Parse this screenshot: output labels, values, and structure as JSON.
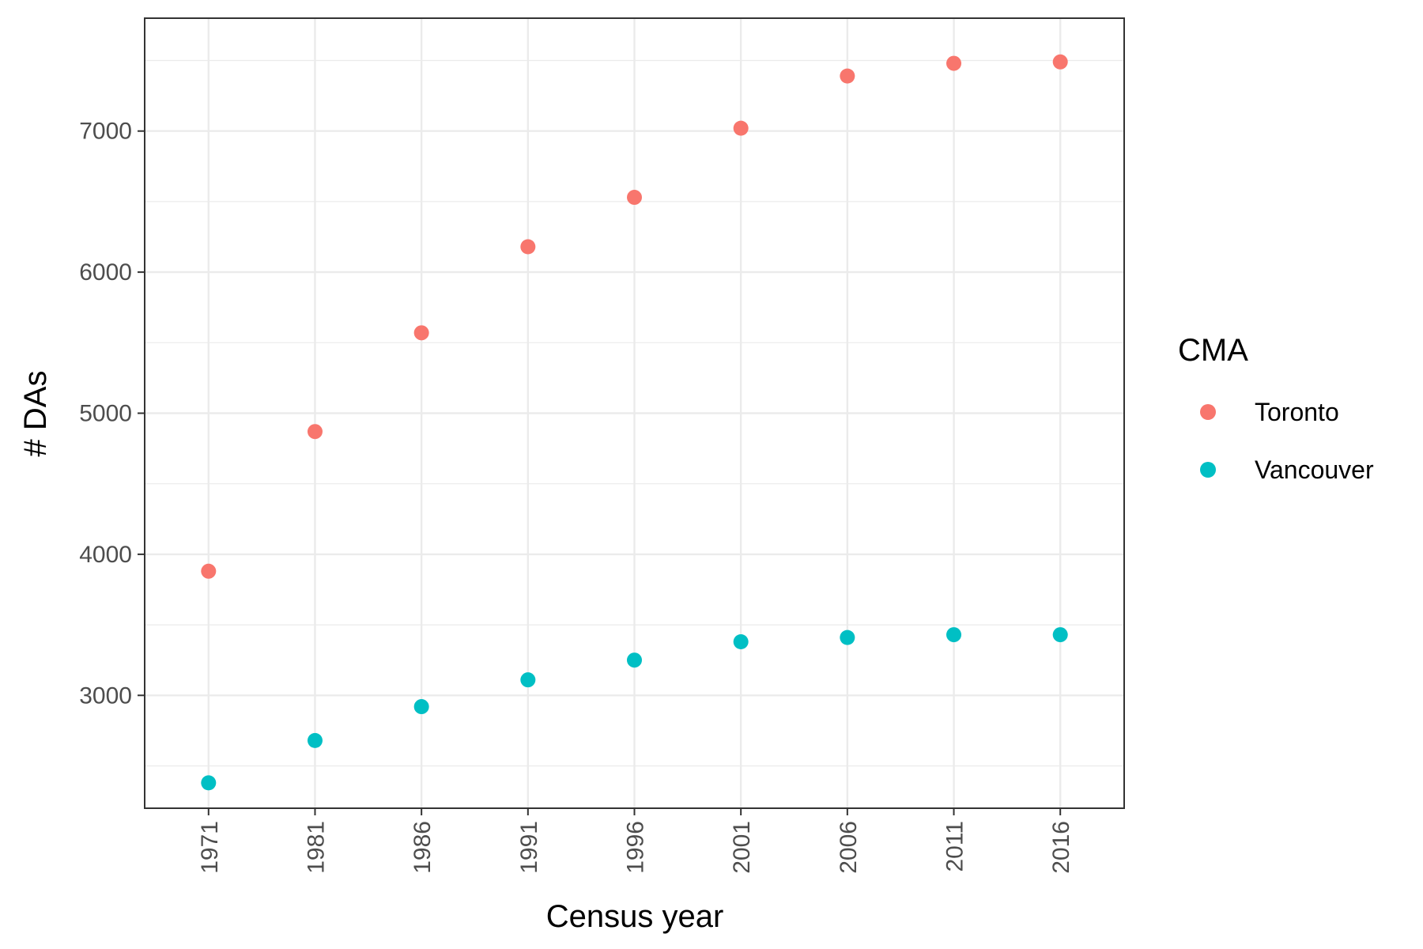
{
  "chart_data": {
    "type": "scatter",
    "title": "",
    "xlabel": "Census year",
    "ylabel": "# DAs",
    "x_axis": {
      "scale": "categorical",
      "tick_label_rotation": "vertical"
    },
    "categories": [
      "1971",
      "1981",
      "1986",
      "1991",
      "1996",
      "2001",
      "2006",
      "2011",
      "2016"
    ],
    "ylim": [
      2200,
      7800
    ],
    "y_ticks": [
      3000,
      4000,
      5000,
      6000,
      7000
    ],
    "grid": true,
    "legend": {
      "title": "CMA",
      "position": "right"
    },
    "series": [
      {
        "name": "Toronto",
        "color": "#F8766D",
        "values": [
          3880,
          4870,
          5570,
          6180,
          6530,
          7020,
          7390,
          7480,
          7490
        ]
      },
      {
        "name": "Vancouver",
        "color": "#00BFC4",
        "values": [
          2380,
          2680,
          2920,
          3110,
          3250,
          3380,
          3410,
          3430,
          3430
        ]
      }
    ]
  }
}
